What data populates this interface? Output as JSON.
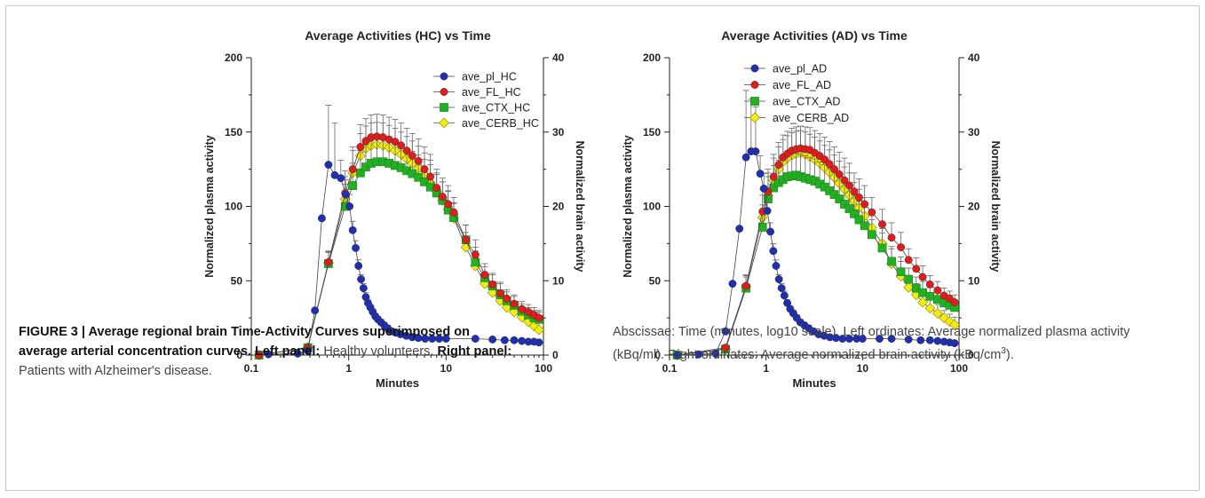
{
  "colors": {
    "plasma": "#1f2fb0",
    "fl": "#e21b1b",
    "ctx": "#22b022",
    "cerb": "#f2ec10"
  },
  "caption": {
    "left": {
      "lead": "FIGURE 3 | Average regional brain Time-Activity Curves superimposed on average arterial concentration curves.",
      "left_label": "Left panel:",
      "left_text": "Healthy volunteers.",
      "right_label": "Right panel:",
      "right_text": "Patients with Alzheimer's disease."
    },
    "right": {
      "text_pre": "Abscissae: Time (minutes, log10 scale). Left ordinates: Average normalized plasma activity (kBq/ml). Right ordinates: Average normalized brain activity (kBq/cm",
      "sup": "3",
      "text_post": ")."
    }
  },
  "chart_data": [
    {
      "type": "scatter",
      "title": "Average Activities (HC) vs Time",
      "xlabel": "Minutes",
      "ylabel": "Normalized plasma activity",
      "y2label": "Normalized brain activity",
      "xscale": "log",
      "xlim": [
        0.1,
        100
      ],
      "ylim": [
        0,
        200
      ],
      "y2lim": [
        0,
        40
      ],
      "xticks": [
        "0.1",
        "1",
        "10",
        "100"
      ],
      "yticks": [
        "0",
        "50",
        "100",
        "150",
        "200"
      ],
      "y2ticks": [
        "0",
        "10",
        "20",
        "30",
        "40"
      ],
      "legend": "top-right",
      "series": [
        {
          "name": "ave_pl_HC",
          "axis": "left",
          "marker": "circle",
          "color": "plasma",
          "x": [
            0.15,
            0.3,
            0.38,
            0.45,
            0.53,
            0.62,
            0.72,
            0.83,
            0.93,
            1.02,
            1.1,
            1.18,
            1.26,
            1.34,
            1.42,
            1.5,
            1.58,
            1.67,
            1.77,
            1.88,
            2.0,
            2.15,
            2.32,
            2.52,
            2.75,
            3.05,
            3.4,
            3.9,
            4.5,
            5.2,
            6.1,
            7.2,
            8.5,
            10,
            20,
            30,
            40,
            50,
            60,
            70,
            80,
            90
          ],
          "y": [
            0.5,
            1,
            3,
            30,
            92,
            128,
            121,
            119,
            108,
            100,
            84,
            72,
            60,
            51,
            45,
            39,
            35,
            32,
            29,
            26,
            24,
            22,
            20,
            18,
            16,
            15,
            14,
            13,
            12,
            11.5,
            11,
            11,
            11,
            11,
            11,
            10.5,
            10,
            10,
            9.5,
            9,
            9,
            8.5
          ],
          "err": [
            0,
            0,
            0,
            0,
            0,
            40,
            35,
            12,
            10,
            8,
            6,
            5,
            4,
            3,
            3,
            3,
            2,
            2,
            2,
            2,
            2,
            2,
            2,
            2,
            2,
            1,
            1,
            1,
            1,
            1,
            1,
            1,
            1,
            1,
            1,
            1,
            1,
            1,
            1,
            1,
            1,
            1
          ]
        },
        {
          "name": "ave_FL_HC",
          "axis": "right",
          "marker": "circle",
          "color": "fl",
          "x": [
            0.12,
            0.38,
            0.62,
            0.92,
            1.1,
            1.32,
            1.5,
            1.7,
            1.95,
            2.25,
            2.6,
            3.0,
            3.45,
            3.95,
            4.5,
            5.2,
            6.0,
            6.9,
            8.0,
            9.2,
            10.5,
            12,
            16,
            20,
            25,
            30,
            36,
            42,
            50,
            60,
            70,
            80,
            90
          ],
          "y": [
            0,
            1,
            12.5,
            21.8,
            25,
            28,
            28.8,
            29.3,
            29.4,
            29.3,
            29.0,
            28.7,
            28.2,
            27.5,
            26.8,
            26.1,
            25.0,
            24.0,
            22.5,
            21.3,
            20.3,
            19.2,
            15.5,
            13.5,
            10.8,
            9.5,
            8.3,
            7.6,
            6.9,
            6.2,
            5.8,
            5.4,
            5.0
          ],
          "err": [
            0,
            0,
            1.5,
            3,
            3,
            3,
            3,
            3,
            3,
            3,
            3,
            3,
            3,
            3,
            3,
            3,
            3,
            3,
            2.5,
            2.5,
            2.5,
            2,
            2,
            2,
            1.5,
            1.5,
            1.5,
            1.2,
            1.2,
            1,
            1,
            1,
            1
          ]
        },
        {
          "name": "ave_CTX_HC",
          "axis": "right",
          "marker": "square",
          "color": "ctx",
          "x": [
            0.12,
            0.38,
            0.62,
            0.92,
            1.1,
            1.32,
            1.5,
            1.7,
            1.95,
            2.25,
            2.6,
            3.0,
            3.45,
            3.95,
            4.5,
            5.2,
            6.0,
            6.9,
            8.0,
            9.2,
            10.5,
            12,
            16,
            20,
            25,
            30,
            36,
            42,
            50,
            60,
            70,
            80,
            90
          ],
          "y": [
            0,
            1,
            12.3,
            20,
            22.8,
            24.5,
            25.3,
            25.8,
            26.0,
            26.0,
            25.8,
            25.5,
            25.2,
            24.8,
            24.4,
            23.9,
            23.3,
            22.6,
            21.8,
            20.8,
            19.5,
            18.5,
            15.5,
            12.5,
            10.4,
            9.3,
            8.1,
            7.3,
            6.7,
            5.9,
            5.4,
            5.0,
            4.8
          ],
          "err": [
            0,
            0,
            1.5,
            3,
            3,
            3,
            3,
            3,
            3,
            3,
            3,
            3,
            3,
            3,
            3,
            3,
            3,
            3,
            2.5,
            2.5,
            2.5,
            2,
            2,
            2,
            1.5,
            1.5,
            1.5,
            1.2,
            1.2,
            1,
            1,
            1,
            1
          ]
        },
        {
          "name": "ave_CERB_HC",
          "axis": "right",
          "marker": "diamond",
          "color": "cerb",
          "x": [
            0.12,
            0.38,
            0.62,
            0.92,
            1.1,
            1.32,
            1.5,
            1.7,
            1.95,
            2.25,
            2.6,
            3.0,
            3.45,
            3.95,
            4.5,
            5.2,
            6.0,
            6.9,
            8.0,
            9.2,
            10.5,
            12,
            16,
            20,
            25,
            30,
            36,
            42,
            50,
            60,
            70,
            80,
            90
          ],
          "y": [
            0,
            1,
            12.4,
            21.0,
            24.5,
            26.8,
            27.8,
            28.2,
            28.3,
            28.2,
            27.9,
            27.5,
            27.0,
            26.4,
            25.8,
            25.1,
            24.2,
            23.2,
            22.0,
            20.8,
            19.6,
            18.4,
            14.5,
            12.0,
            9.6,
            8.4,
            7.3,
            6.4,
            5.8,
            5.1,
            4.5,
            3.9,
            3.4
          ],
          "err": [
            0,
            0,
            1.5,
            3,
            3,
            3,
            3,
            3,
            3,
            3,
            3,
            3,
            3,
            3,
            3,
            3,
            3,
            3,
            2.5,
            2.5,
            2.5,
            2,
            2,
            2,
            1.5,
            1.5,
            1.5,
            1.2,
            1.2,
            1,
            1,
            1,
            1
          ]
        }
      ]
    },
    {
      "type": "scatter",
      "title": "Average Activities (AD) vs Time",
      "xlabel": "Minutes",
      "ylabel": "Normalized plasma activity",
      "y2label": "Normalized brain activity",
      "xscale": "log",
      "xlim": [
        0.1,
        100
      ],
      "ylim": [
        0,
        200
      ],
      "y2lim": [
        0,
        40
      ],
      "xticks": [
        "0.1",
        "1",
        "10",
        "100"
      ],
      "yticks": [
        "0",
        "50",
        "100",
        "150",
        "200"
      ],
      "y2ticks": [
        "0",
        "10",
        "20",
        "30",
        "40"
      ],
      "legend": "top-right",
      "series": [
        {
          "name": "ave_pl_AD",
          "axis": "left",
          "marker": "circle",
          "color": "plasma",
          "x": [
            0.12,
            0.2,
            0.3,
            0.38,
            0.45,
            0.53,
            0.62,
            0.7,
            0.78,
            0.87,
            0.95,
            1.03,
            1.11,
            1.19,
            1.27,
            1.36,
            1.45,
            1.55,
            1.66,
            1.78,
            1.92,
            2.08,
            2.27,
            2.5,
            2.77,
            3.1,
            3.5,
            4.0,
            4.6,
            5.3,
            6.2,
            7.3,
            8.7,
            10,
            15,
            20,
            30,
            40,
            50,
            60,
            70,
            80,
            90
          ],
          "y": [
            0,
            0.5,
            1,
            16,
            48,
            85,
            133,
            137,
            137,
            122,
            112,
            97,
            83,
            70,
            60,
            51,
            45,
            40,
            35,
            31,
            28,
            25,
            22,
            20,
            18,
            16,
            14,
            13,
            12,
            11.5,
            11,
            11,
            11,
            11,
            11,
            11,
            10.5,
            10,
            10,
            9.5,
            9,
            8.5,
            8
          ],
          "err": [
            0,
            0,
            0,
            0,
            0,
            0,
            45,
            35,
            30,
            12,
            10,
            8,
            6,
            5,
            4,
            3,
            3,
            3,
            2,
            2,
            2,
            2,
            2,
            2,
            2,
            1,
            1,
            1,
            1,
            1,
            1,
            1,
            1,
            1,
            1,
            1,
            1,
            1,
            1,
            1,
            1,
            1,
            1
          ]
        },
        {
          "name": "ave_FL_AD",
          "axis": "right",
          "marker": "circle",
          "color": "fl",
          "x": [
            0.12,
            0.38,
            0.62,
            0.92,
            1.05,
            1.2,
            1.35,
            1.5,
            1.67,
            1.85,
            2.05,
            2.28,
            2.55,
            2.85,
            3.2,
            3.6,
            4.05,
            4.55,
            5.1,
            5.75,
            6.5,
            7.3,
            8.2,
            9.2,
            10.5,
            12.5,
            16,
            20,
            25,
            30,
            36,
            42,
            50,
            60,
            70,
            80,
            90
          ],
          "y": [
            0,
            1,
            9.3,
            19.3,
            22,
            24,
            25.6,
            26.6,
            27.1,
            27.5,
            27.7,
            27.8,
            27.7,
            27.6,
            27.2,
            26.8,
            26.3,
            25.7,
            25.0,
            24.3,
            23.5,
            22.8,
            22.0,
            21.2,
            20.3,
            19.2,
            17.6,
            15.8,
            14.5,
            12.8,
            11.6,
            10.5,
            9.5,
            8.7,
            8.0,
            7.6,
            7.1
          ],
          "err": [
            0,
            0,
            1.5,
            3,
            3,
            3,
            3,
            3,
            3,
            3,
            3,
            3,
            3,
            3,
            3,
            3,
            3,
            3,
            3,
            3,
            3,
            3,
            2.5,
            2.5,
            2.5,
            2,
            2,
            2,
            2,
            1.5,
            1.5,
            1.5,
            1.2,
            1.2,
            1,
            1,
            1
          ]
        },
        {
          "name": "ave_CTX_AD",
          "axis": "right",
          "marker": "square",
          "color": "ctx",
          "x": [
            0.12,
            0.38,
            0.62,
            0.92,
            1.05,
            1.2,
            1.35,
            1.5,
            1.67,
            1.85,
            2.05,
            2.28,
            2.55,
            2.85,
            3.2,
            3.6,
            4.05,
            4.55,
            5.1,
            5.75,
            6.5,
            7.3,
            8.2,
            9.2,
            10.5,
            12.5,
            16,
            20,
            25,
            30,
            36,
            42,
            50,
            60,
            70,
            80,
            90
          ],
          "y": [
            0,
            0.8,
            9.0,
            17.2,
            21.0,
            22.5,
            23.2,
            23.6,
            24.0,
            24.1,
            24.2,
            24.0,
            23.8,
            23.6,
            23.4,
            23.0,
            22.6,
            22.1,
            21.6,
            21.0,
            20.3,
            19.7,
            19.0,
            18.2,
            17.4,
            16.2,
            14.4,
            12.6,
            11.2,
            10.2,
            9.0,
            8.4,
            7.9,
            7.5,
            7.0,
            6.7,
            6.4
          ],
          "err": [
            0,
            0,
            1.5,
            3,
            3,
            3,
            3,
            3,
            3,
            3,
            3,
            3,
            3,
            3,
            3,
            3,
            3,
            3,
            3,
            3,
            3,
            3,
            2.5,
            2.5,
            2.5,
            2,
            2,
            2,
            2,
            1.5,
            1.5,
            1.5,
            1.2,
            1.2,
            1,
            1,
            1
          ]
        },
        {
          "name": "ave_CERB_AD",
          "axis": "right",
          "marker": "diamond",
          "color": "cerb",
          "x": [
            0.12,
            0.38,
            0.62,
            0.92,
            1.05,
            1.2,
            1.35,
            1.5,
            1.67,
            1.85,
            2.05,
            2.28,
            2.55,
            2.85,
            3.2,
            3.6,
            4.05,
            4.55,
            5.1,
            5.75,
            6.5,
            7.3,
            8.2,
            9.2,
            10.5,
            12.5,
            16,
            20,
            25,
            30,
            36,
            42,
            50,
            60,
            70,
            80,
            90
          ],
          "y": [
            0,
            0.8,
            9.2,
            18.5,
            21.5,
            23.5,
            25.0,
            26.0,
            26.5,
            26.9,
            27.1,
            27.2,
            27.0,
            26.7,
            26.3,
            25.8,
            25.2,
            24.6,
            23.9,
            23.1,
            22.3,
            21.5,
            20.7,
            19.8,
            18.7,
            17.1,
            15.0,
            12.3,
            10.6,
            9.1,
            8.1,
            7.1,
            6.3,
            5.6,
            5.0,
            4.5,
            4.1
          ],
          "err": [
            0,
            0,
            1.5,
            3,
            3,
            3,
            3,
            3,
            3,
            3,
            3,
            3,
            3,
            3,
            3,
            3,
            3,
            3,
            3,
            3,
            3,
            3,
            2.5,
            2.5,
            2.5,
            2,
            2,
            2,
            2,
            1.5,
            1.5,
            1.5,
            1.2,
            1.2,
            1,
            1,
            1
          ]
        }
      ]
    }
  ]
}
